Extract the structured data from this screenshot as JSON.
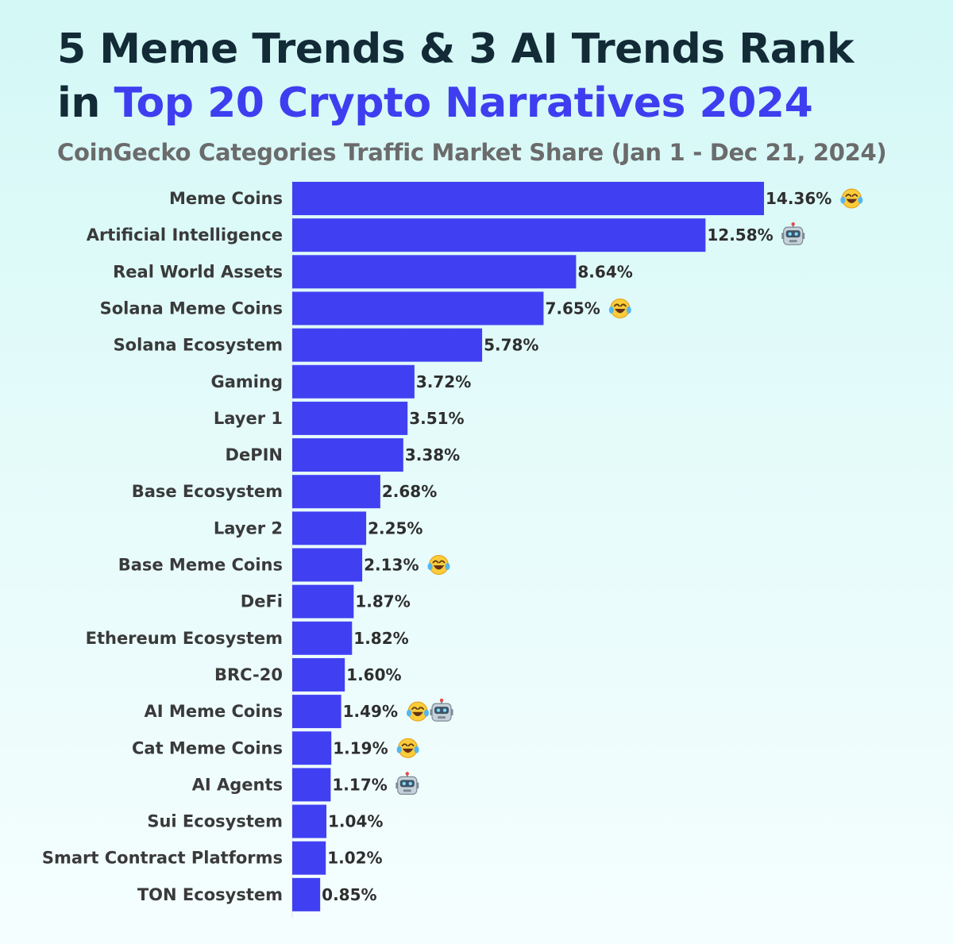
{
  "header": {
    "title_line1": "5 Meme Trends & 3 AI Trends Rank",
    "title_line2_prefix": "in",
    "title_line2_accent": "Top 20 Crypto Narratives 2024",
    "subtitle": "CoinGecko Categories Traffic Market Share (Jan 1 - Dec 21, 2024)"
  },
  "colors": {
    "bar": "#4040f2",
    "title": "#122b36",
    "accent": "#3e3ef0",
    "subtitle": "#6b6b6b"
  },
  "chart_data": {
    "type": "bar",
    "orientation": "horizontal",
    "title": "5 Meme Trends & 3 AI Trends Rank in Top 20 Crypto Narratives 2024",
    "subtitle": "CoinGecko Categories Traffic Market Share (Jan 1 - Dec 21, 2024)",
    "categories": [
      "Meme Coins",
      "Artificial Intelligence",
      "Real World Assets",
      "Solana Meme Coins",
      "Solana Ecosystem",
      "Gaming",
      "Layer 1",
      "DePIN",
      "Base Ecosystem",
      "Layer 2",
      "Base Meme Coins",
      "DeFi",
      "Ethereum Ecosystem",
      "BRC-20",
      "AI Meme Coins",
      "Cat Meme Coins",
      "AI Agents",
      "Sui Ecosystem",
      "Smart Contract Platforms",
      "TON Ecosystem"
    ],
    "values": [
      14.36,
      12.58,
      8.64,
      7.65,
      5.78,
      3.72,
      3.51,
      3.38,
      2.68,
      2.25,
      2.13,
      1.87,
      1.82,
      1.6,
      1.49,
      1.19,
      1.17,
      1.04,
      1.02,
      0.85
    ],
    "value_labels": [
      "14.36%",
      "12.58%",
      "8.64%",
      "7.65%",
      "5.78%",
      "3.72%",
      "3.51%",
      "3.38%",
      "2.68%",
      "2.25%",
      "2.13%",
      "1.87%",
      "1.82%",
      "1.60%",
      "1.49%",
      "1.19%",
      "1.17%",
      "1.04%",
      "1.02%",
      "0.85%"
    ],
    "markers": [
      [
        "meme"
      ],
      [
        "ai"
      ],
      [],
      [
        "meme"
      ],
      [],
      [],
      [],
      [],
      [],
      [],
      [
        "meme"
      ],
      [],
      [],
      [],
      [
        "meme",
        "ai"
      ],
      [
        "meme"
      ],
      [
        "ai"
      ],
      [],
      [],
      []
    ],
    "marker_legend": {
      "meme": "laughing-face-icon",
      "ai": "robot-face-icon"
    },
    "xlabel": "",
    "ylabel": "",
    "xlim": [
      0,
      14.36
    ],
    "unit": "%",
    "grid": false,
    "legend": "none"
  }
}
